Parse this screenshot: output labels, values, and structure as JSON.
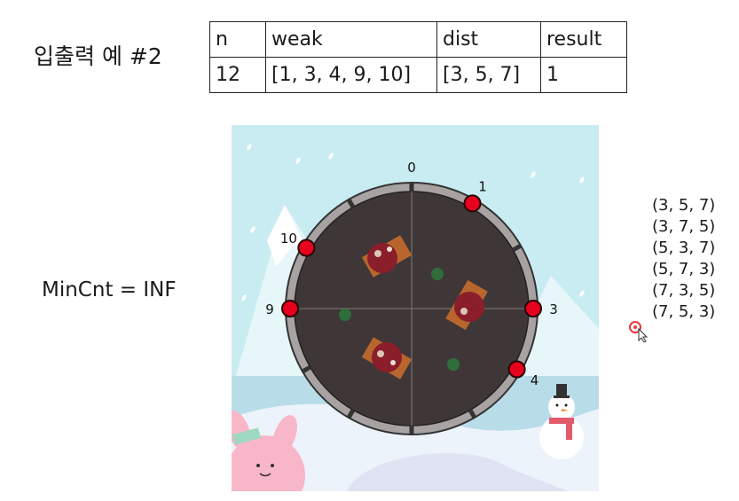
{
  "heading": "입출력 예 #2",
  "table": {
    "headers": [
      "n",
      "weak",
      "dist",
      "result"
    ],
    "row": [
      "12",
      "[1, 3, 4, 9, 10]",
      "[3, 5, 7]",
      "1"
    ]
  },
  "min_count": "MinCnt = INF",
  "diagram": {
    "positions": [
      "0",
      "1",
      "3",
      "4",
      "9",
      "10"
    ],
    "weak_points": [
      1,
      3,
      4,
      9,
      10
    ],
    "total_points": 12,
    "colors": {
      "ring": "#a8a2a2",
      "floor": "#3f3737",
      "weak_marker": "#e8001f",
      "sky": "#c9ecf2"
    }
  },
  "permutations": [
    "(3, 5, 7)",
    "(3, 7, 5)",
    "(5, 3, 7)",
    "(5, 7, 3)",
    "(7, 3, 5)",
    "(7, 5, 3)"
  ]
}
